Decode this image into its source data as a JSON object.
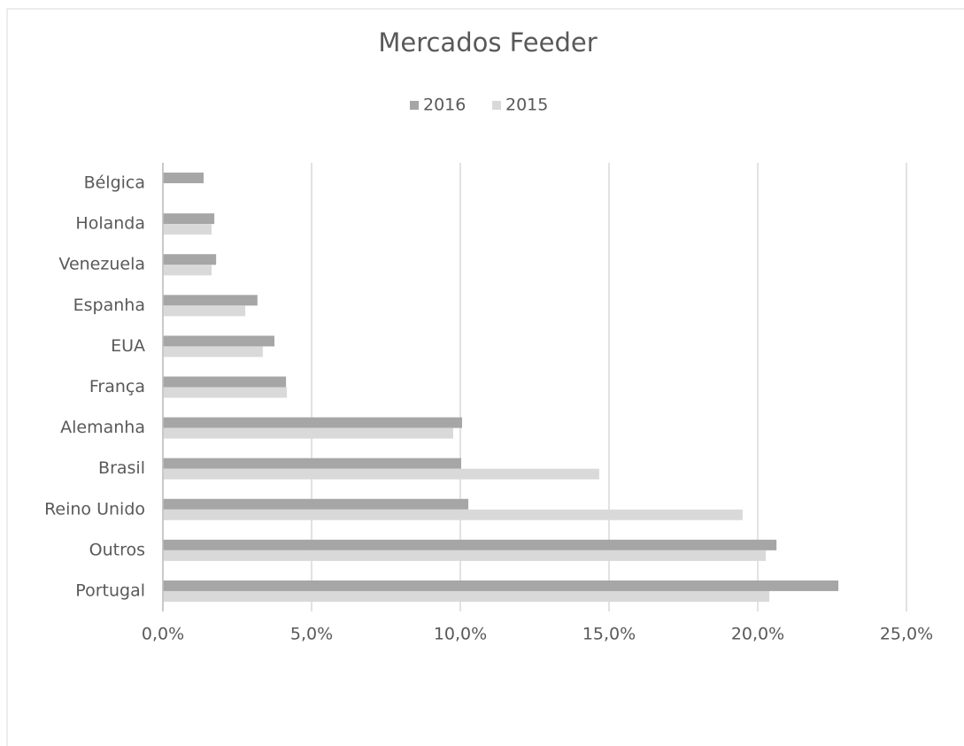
{
  "chart_data": {
    "type": "bar",
    "orientation": "horizontal",
    "title": "Mercados Feeder",
    "categories": [
      "Bélgica",
      "Holanda",
      "Venezuela",
      "Espanha",
      "EUA",
      "França",
      "Alemanha",
      "Brasil",
      "Reino Unido",
      "Outros",
      "Portugal"
    ],
    "series": [
      {
        "name": "2016",
        "color": "#a6a6a6",
        "values": [
          1.37,
          1.73,
          1.79,
          3.18,
          3.75,
          4.14,
          10.06,
          10.03,
          10.27,
          20.63,
          22.71
        ]
      },
      {
        "name": "2015",
        "color": "#d9d9d9",
        "values": [
          null,
          1.64,
          1.64,
          2.77,
          3.36,
          4.17,
          9.76,
          14.67,
          19.49,
          20.27,
          20.39
        ]
      }
    ],
    "xlim": [
      0,
      25
    ],
    "xticks": [
      {
        "value": 0,
        "label": "0,0%"
      },
      {
        "value": 5,
        "label": "5,0%"
      },
      {
        "value": 10,
        "label": "10,0%"
      },
      {
        "value": 15,
        "label": "15,0%"
      },
      {
        "value": 20,
        "label": "20,0%"
      },
      {
        "value": 25,
        "label": "25,0%"
      }
    ],
    "grid": true,
    "legend": "top"
  }
}
